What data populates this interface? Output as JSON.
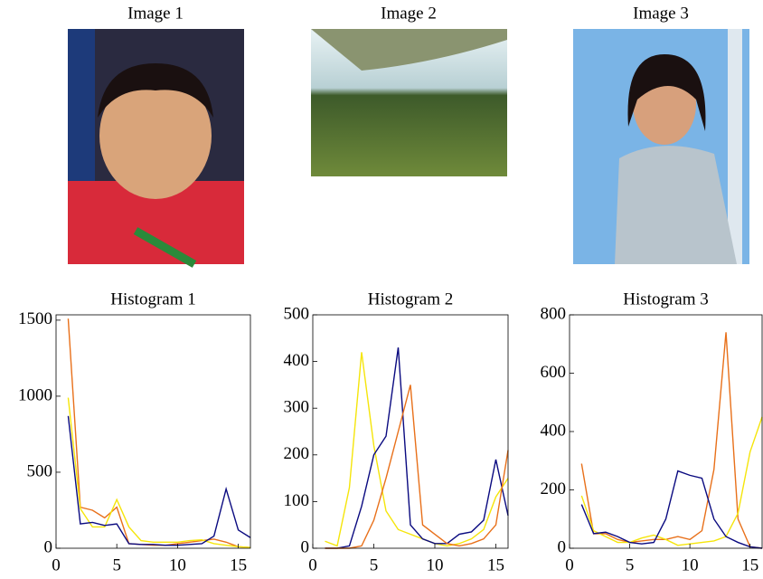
{
  "images": [
    {
      "title": "Image 1"
    },
    {
      "title": "Image 2"
    },
    {
      "title": "Image 3"
    }
  ],
  "chart_data": [
    {
      "type": "line",
      "title": "Histogram 1",
      "x": [
        1,
        2,
        3,
        4,
        5,
        6,
        7,
        8,
        9,
        10,
        11,
        12,
        13,
        14,
        15,
        16
      ],
      "series": [
        {
          "color": "#e8701a",
          "values": [
            1510,
            270,
            250,
            200,
            270,
            30,
            25,
            20,
            20,
            30,
            40,
            50,
            60,
            40,
            10,
            5
          ]
        },
        {
          "color": "#f5e50a",
          "values": [
            990,
            260,
            140,
            140,
            320,
            140,
            50,
            40,
            40,
            40,
            50,
            55,
            30,
            20,
            10,
            5
          ]
        },
        {
          "color": "#0a0a80",
          "values": [
            870,
            160,
            170,
            150,
            160,
            30,
            25,
            25,
            20,
            20,
            25,
            30,
            80,
            390,
            120,
            70
          ]
        }
      ],
      "xlim": [
        0,
        16
      ],
      "ylim": [
        0,
        1535
      ],
      "xticks": [
        0,
        5,
        10,
        15
      ],
      "yticks": [
        0,
        500,
        1000,
        1500
      ]
    },
    {
      "type": "line",
      "title": "Histogram 2",
      "x": [
        1,
        2,
        3,
        4,
        5,
        6,
        7,
        8,
        9,
        10,
        11,
        12,
        13,
        14,
        15,
        16
      ],
      "series": [
        {
          "color": "#f5e50a",
          "values": [
            15,
            5,
            130,
            420,
            220,
            80,
            40,
            30,
            20,
            10,
            5,
            10,
            20,
            40,
            110,
            150
          ]
        },
        {
          "color": "#0a0a80",
          "values": [
            0,
            0,
            5,
            90,
            200,
            240,
            430,
            50,
            20,
            10,
            10,
            30,
            35,
            60,
            190,
            70
          ]
        },
        {
          "color": "#e8701a",
          "values": [
            0,
            0,
            0,
            5,
            60,
            150,
            250,
            350,
            50,
            30,
            10,
            5,
            10,
            20,
            50,
            210
          ]
        }
      ],
      "xlim": [
        0,
        16
      ],
      "ylim": [
        0,
        500
      ],
      "xticks": [
        0,
        5,
        10,
        15
      ],
      "yticks": [
        0,
        100,
        200,
        300,
        400,
        500
      ]
    },
    {
      "type": "line",
      "title": "Histogram 3",
      "x": [
        1,
        2,
        3,
        4,
        5,
        6,
        7,
        8,
        9,
        10,
        11,
        12,
        13,
        14,
        15,
        16
      ],
      "series": [
        {
          "color": "#e8701a",
          "values": [
            290,
            50,
            50,
            30,
            20,
            25,
            30,
            30,
            40,
            30,
            60,
            270,
            740,
            100,
            5,
            0
          ]
        },
        {
          "color": "#f5e50a",
          "values": [
            180,
            60,
            40,
            20,
            20,
            35,
            45,
            30,
            10,
            15,
            20,
            25,
            40,
            120,
            330,
            450
          ]
        },
        {
          "color": "#0a0a80",
          "values": [
            150,
            50,
            55,
            40,
            20,
            15,
            20,
            100,
            265,
            250,
            240,
            100,
            40,
            20,
            5,
            0
          ]
        }
      ],
      "xlim": [
        0,
        16
      ],
      "ylim": [
        0,
        800
      ],
      "xticks": [
        0,
        5,
        10,
        15
      ],
      "yticks": [
        0,
        200,
        400,
        600,
        800
      ]
    }
  ]
}
